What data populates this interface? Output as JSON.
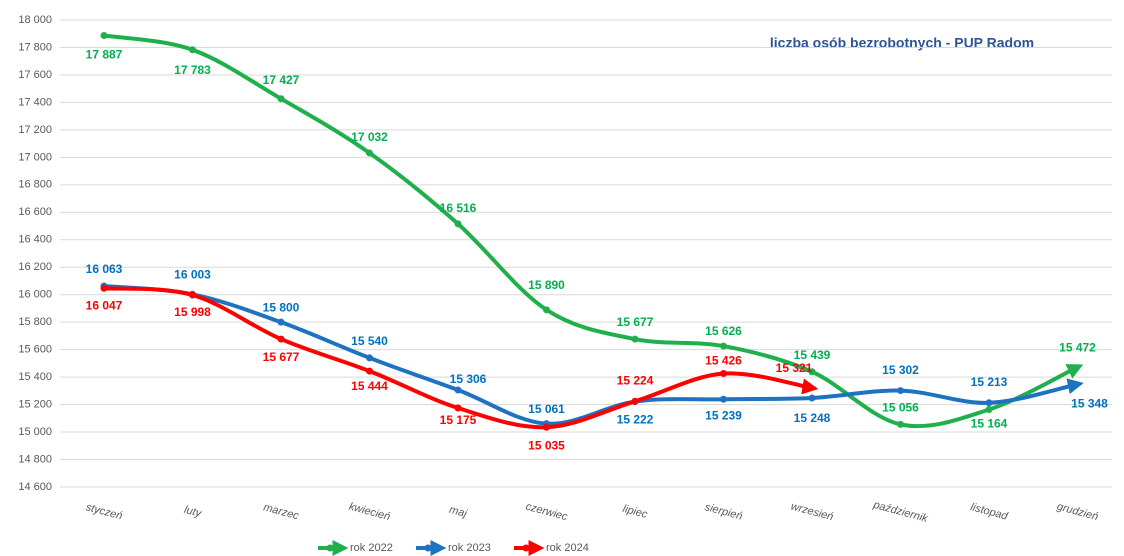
{
  "chart_data": {
    "type": "line",
    "title": "liczba osób bezrobotnych - PUP Radom",
    "categories": [
      "styczeń",
      "luty",
      "marzec",
      "kwiecień",
      "maj",
      "czerwiec",
      "lipiec",
      "sierpień",
      "wrzesień",
      "październik",
      "listopad",
      "grudzień"
    ],
    "series": [
      {
        "name": "rok 2022",
        "color": "#20b04b",
        "label_color": "#00b050",
        "values": [
          17887,
          17783,
          17427,
          17032,
          16516,
          15890,
          15677,
          15626,
          15439,
          15056,
          15164,
          15472
        ],
        "value_labels": [
          "17 887",
          "17 783",
          "17 427",
          "17 032",
          "16 516",
          "15 890",
          "15 677",
          "15 626",
          "15 439",
          "15 056",
          "15 164",
          "15 472"
        ]
      },
      {
        "name": "rok 2023",
        "color": "#1f72c0",
        "label_color": "#0070c0",
        "values": [
          16063,
          16003,
          15800,
          15540,
          15306,
          15061,
          15222,
          15239,
          15248,
          15302,
          15213,
          15348
        ],
        "value_labels": [
          "16 063",
          "16 003",
          "15 800",
          "15 540",
          "15 306",
          "15 061",
          "15 222",
          "15 239",
          "15 248",
          "15 302",
          "15 213",
          "15 348"
        ]
      },
      {
        "name": "rok 2024",
        "color": "#ff0000",
        "label_color": "#ff0000",
        "values": [
          16047,
          15998,
          15677,
          15444,
          15175,
          15035,
          15224,
          15426,
          15321,
          null,
          null,
          null
        ],
        "value_labels": [
          "16 047",
          "15 998",
          "15 677",
          "15 444",
          "15 175",
          "15 035",
          "15 224",
          "15 426",
          "15 321",
          null,
          null,
          null
        ]
      }
    ],
    "ylim": [
      14600,
      18000
    ],
    "yticks": [
      {
        "value": 14600,
        "label": "14 600"
      },
      {
        "value": 14800,
        "label": "14 800"
      },
      {
        "value": 15000,
        "label": "15 000"
      },
      {
        "value": 15200,
        "label": "15 200"
      },
      {
        "value": 15400,
        "label": "15 400"
      },
      {
        "value": 15600,
        "label": "15 600"
      },
      {
        "value": 15800,
        "label": "15 800"
      },
      {
        "value": 16000,
        "label": "16 000"
      },
      {
        "value": 16200,
        "label": "16 200"
      },
      {
        "value": 16400,
        "label": "16 400"
      },
      {
        "value": 16600,
        "label": "16 600"
      },
      {
        "value": 16800,
        "label": "16 800"
      },
      {
        "value": 17000,
        "label": "17 000"
      },
      {
        "value": 17200,
        "label": "17 200"
      },
      {
        "value": 17400,
        "label": "17 400"
      },
      {
        "value": 17600,
        "label": "17 600"
      },
      {
        "value": 17800,
        "label": "17 800"
      },
      {
        "value": 18000,
        "label": "18 000"
      }
    ],
    "grid": true,
    "legend": "bottom"
  }
}
